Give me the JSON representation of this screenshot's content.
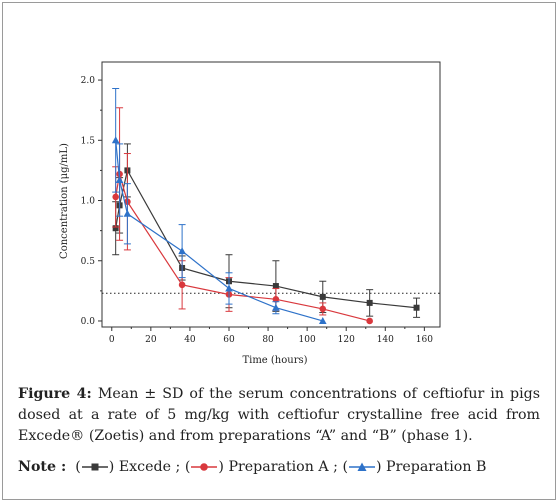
{
  "figure": {
    "label": "Figure 4:",
    "caption": "Mean ± SD of the serum concentrations of ceftiofur in pigs dosed at a rate of 5 mg/kg with ceftiofur crystalline free acid from Excede® (Zoetis) and from preparations “A” and “B” (phase 1).",
    "note_label": "Note :",
    "note_items": [
      {
        "name": "Excede",
        "sep": " ;"
      },
      {
        "name": "Preparation A",
        "sep": " ;"
      },
      {
        "name": "Preparation B",
        "sep": ""
      }
    ]
  },
  "chart_data": {
    "type": "line",
    "xlabel": "Time (hours)",
    "ylabel": "Concentration (μg/mL)",
    "xlim": [
      -5,
      168
    ],
    "ylim": [
      -0.05,
      2.15
    ],
    "xticks": [
      0,
      20,
      40,
      60,
      80,
      100,
      120,
      140,
      160
    ],
    "yticks": [
      0.0,
      0.5,
      1.0,
      1.5,
      2.0
    ],
    "ytick_labels": [
      "0.0",
      "0.5",
      "1.0",
      "1.5",
      "2.0"
    ],
    "reference_line": {
      "y": 0.23,
      "style": "dotted"
    },
    "grid": false,
    "series": [
      {
        "name": "Excede",
        "color": "#3a3a3a",
        "marker": "square",
        "x": [
          2,
          4,
          8,
          36,
          60,
          84,
          108,
          132,
          156
        ],
        "y": [
          0.77,
          0.96,
          1.25,
          0.44,
          0.33,
          0.29,
          0.2,
          0.15,
          0.11
        ],
        "err": [
          0.22,
          0.23,
          0.22,
          0.1,
          0.22,
          0.21,
          0.13,
          0.11,
          0.08
        ]
      },
      {
        "name": "Preparation A",
        "color": "#d9383d",
        "marker": "circle",
        "x": [
          2,
          4,
          8,
          36,
          60,
          84,
          108,
          132
        ],
        "y": [
          1.03,
          1.22,
          0.99,
          0.3,
          0.22,
          0.18,
          0.1,
          0.0
        ],
        "err": [
          0.25,
          0.55,
          0.4,
          0.2,
          0.14,
          0.09,
          0.05,
          0.0
        ]
      },
      {
        "name": "Preparation B",
        "color": "#2e72c9",
        "marker": "triangle",
        "x": [
          2,
          4,
          8,
          36,
          60,
          84,
          108
        ],
        "y": [
          1.5,
          1.17,
          0.89,
          0.58,
          0.27,
          0.11,
          0.0
        ],
        "err": [
          0.43,
          0.3,
          0.25,
          0.22,
          0.13,
          0.05,
          0.0
        ]
      }
    ]
  }
}
